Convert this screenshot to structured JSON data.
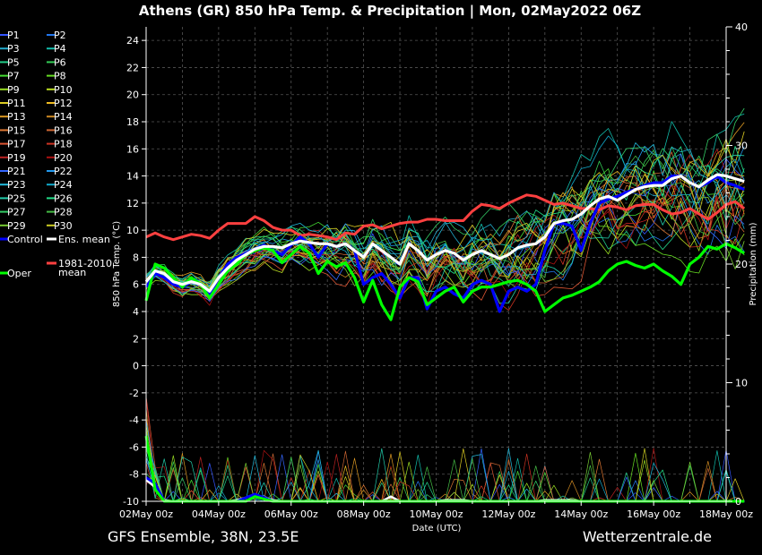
{
  "chart_data": {
    "type": "line",
    "title": "Athens  (GR)  850 hPa Temp. & Precipitation | Mon, 02May2022 06Z",
    "footer_left": "GFS Ensemble, 38N, 23.5E",
    "footer_right": "Wetterzentrale.de",
    "xlabel": "Date (UTC)",
    "ylabel_left": "850 hPa Temp. (°C)",
    "ylabel_right": "Precipitation (mm)",
    "x_range_days": [
      0,
      16
    ],
    "x_step_hours": 6,
    "x_ticks": [
      "02May 00z",
      "04May 00z",
      "06May 00z",
      "08May 00z",
      "10May 00z",
      "12May 00z",
      "14May 00z",
      "16May 00z",
      "18May 00z"
    ],
    "ylim_left": [
      -10,
      25
    ],
    "yticks_left": [
      "-10",
      "-8",
      "-6",
      "-4",
      "-2",
      "0",
      "2",
      "4",
      "6",
      "8",
      "10",
      "12",
      "14",
      "16",
      "18",
      "20",
      "22",
      "24"
    ],
    "ylim_right": [
      0,
      40
    ],
    "yticks_right": [
      "0",
      "10",
      "20",
      "30",
      "40"
    ],
    "grid": true,
    "legend_position": "left",
    "colors": {
      "control": "#0000ff",
      "ens_mean": "#ffffff",
      "oper": "#00ff00",
      "climate_mean": "#ff4040",
      "members": [
        "#3355ff",
        "#2277ee",
        "#22aacc",
        "#11bbaa",
        "#22cc88",
        "#33cc55",
        "#44dd33",
        "#66dd22",
        "#99dd22",
        "#bbdd22",
        "#ddcc22",
        "#eebb22",
        "#dd9922",
        "#cc8822",
        "#dd7733",
        "#cc6633",
        "#dd5533",
        "#cc3322",
        "#bb2222",
        "#aa1111",
        "#3366ff",
        "#2299ee",
        "#22bbdd",
        "#11aacc",
        "#22ccaa",
        "#22dd88",
        "#33cc66",
        "#44bb44",
        "#77cc33",
        "#cccc22"
      ]
    },
    "legend": {
      "members": [
        "P1",
        "P2",
        "P3",
        "P4",
        "P5",
        "P6",
        "P7",
        "P8",
        "P9",
        "P10",
        "P11",
        "P12",
        "P13",
        "P14",
        "P15",
        "P16",
        "P17",
        "P18",
        "P19",
        "P20",
        "P21",
        "P22",
        "P23",
        "P24",
        "P25",
        "P26",
        "P27",
        "P28",
        "P29",
        "P30"
      ],
      "control": "Control",
      "ens_mean": "Ens. mean",
      "oper": "Oper",
      "climate_line1": "1981-2010",
      "climate_line2": "mean"
    },
    "series": [
      {
        "name": "1981-2010 mean",
        "role": "climate",
        "values": [
          9.5,
          9.8,
          9.5,
          9.3,
          9.5,
          9.7,
          9.6,
          9.4,
          10.0,
          10.5,
          10.5,
          10.5,
          11.0,
          10.7,
          10.2,
          10.0,
          10.0,
          9.6,
          9.7,
          9.6,
          9.5,
          9.3,
          9.8,
          9.7,
          10.3,
          10.4,
          10.1,
          10.3,
          10.5,
          10.6,
          10.6,
          10.8,
          10.8,
          10.7,
          10.7,
          10.7,
          11.4,
          11.9,
          11.8,
          11.6,
          12.0,
          12.3,
          12.6,
          12.5,
          12.2,
          11.9,
          12.0,
          11.8,
          11.6,
          11.6,
          11.5,
          11.8,
          11.7,
          11.5,
          11.8,
          11.9,
          11.9,
          11.5,
          11.2,
          11.3,
          11.6,
          11.2,
          10.8,
          11.3,
          11.9,
          12.1,
          11.6
        ]
      },
      {
        "name": "Control",
        "role": "control",
        "values": [
          5.8,
          6.8,
          6.5,
          6.0,
          5.8,
          6.2,
          6.0,
          5.2,
          6.5,
          7.5,
          8.0,
          8.3,
          8.6,
          8.9,
          8.5,
          8.2,
          8.9,
          9.5,
          9.0,
          8.0,
          9.0,
          8.8,
          9.0,
          8.5,
          6.0,
          6.5,
          6.8,
          6.0,
          5.0,
          6.5,
          6.5,
          4.2,
          5.5,
          5.8,
          5.3,
          5.0,
          6.0,
          6.3,
          6.0,
          4.0,
          5.5,
          5.8,
          5.5,
          6.0,
          8.5,
          10.5,
          10.5,
          10.3,
          8.5,
          10.5,
          12.0,
          12.3,
          12.5,
          12.8,
          13.0,
          13.3,
          13.5,
          13.5,
          14.0,
          14.0,
          13.5,
          13.2,
          13.5,
          14.0,
          13.5,
          13.3,
          13.0
        ]
      },
      {
        "name": "Ens. mean",
        "role": "ens_mean",
        "values": [
          6.2,
          7.0,
          6.8,
          6.2,
          6.0,
          6.2,
          6.0,
          5.5,
          6.5,
          7.2,
          7.8,
          8.2,
          8.6,
          8.8,
          8.8,
          8.7,
          9.0,
          9.2,
          9.1,
          9.0,
          9.0,
          8.8,
          9.0,
          8.5,
          8.0,
          9.0,
          8.5,
          8.0,
          7.5,
          9.0,
          8.5,
          7.8,
          8.2,
          8.5,
          8.3,
          7.8,
          8.2,
          8.5,
          8.2,
          7.9,
          8.2,
          8.7,
          8.9,
          9.0,
          9.5,
          10.5,
          10.7,
          10.8,
          11.2,
          11.8,
          12.3,
          12.5,
          12.2,
          12.6,
          13.0,
          13.2,
          13.3,
          13.3,
          13.8,
          14.0,
          13.5,
          13.2,
          13.7,
          14.1,
          14.0,
          13.8,
          13.6
        ]
      },
      {
        "name": "Oper",
        "role": "oper",
        "values": [
          4.8,
          7.5,
          7.2,
          6.5,
          5.8,
          6.5,
          6.0,
          5.0,
          6.0,
          7.0,
          7.5,
          8.2,
          8.5,
          8.7,
          8.5,
          7.6,
          8.2,
          8.8,
          8.3,
          6.8,
          7.7,
          7.3,
          7.6,
          6.5,
          4.7,
          6.3,
          4.5,
          3.4,
          5.8,
          6.5,
          6.2,
          4.5,
          5.0,
          5.5,
          5.8,
          4.7,
          5.5,
          5.8,
          5.8,
          6.0,
          6.2,
          6.3,
          6.0,
          5.5,
          4.0,
          4.5,
          5.0,
          5.2,
          5.5,
          5.8,
          6.2,
          7.0,
          7.5,
          7.7,
          7.4,
          7.2,
          7.5,
          7.0,
          6.6,
          6.0,
          7.5,
          8.0,
          8.8,
          8.6,
          9.0,
          8.7,
          8.3
        ]
      }
    ],
    "precip_series": [
      {
        "name": "Control",
        "role": "control",
        "values": [
          2.0,
          1.5,
          0,
          0,
          0,
          0,
          0,
          0,
          0,
          0,
          0,
          0.3,
          0.6,
          0.3,
          0,
          0,
          0,
          0,
          0,
          0,
          0,
          0,
          0,
          0,
          0,
          0,
          0,
          0,
          0,
          0,
          0,
          0,
          0,
          0,
          0,
          0,
          0,
          0,
          0,
          0,
          0,
          0,
          0,
          0,
          0,
          0,
          0,
          0,
          0,
          0,
          0,
          0,
          0,
          0,
          0,
          0,
          0,
          0,
          0,
          0,
          0,
          0,
          0,
          0,
          0,
          0,
          0
        ]
      },
      {
        "name": "Ens. mean",
        "role": "ens_mean",
        "values": [
          1.8,
          1.2,
          0.1,
          0,
          0,
          0,
          0,
          0,
          0,
          0,
          0.1,
          0.3,
          0.6,
          0.3,
          0.1,
          0,
          0,
          0,
          0,
          0,
          0,
          0,
          0,
          0,
          0,
          0,
          0,
          0.4,
          0,
          0,
          0,
          0,
          0,
          0.1,
          0.1,
          0.1,
          0,
          0,
          0,
          0,
          0,
          0,
          0,
          0,
          0.1,
          0.1,
          0.1,
          0.1,
          0,
          0,
          0,
          0,
          0,
          0,
          0,
          0,
          0,
          0,
          0,
          0,
          0,
          0,
          0,
          0,
          0,
          0,
          0
        ]
      },
      {
        "name": "Oper",
        "role": "oper",
        "values": [
          5.5,
          1.0,
          0,
          0,
          0,
          0,
          0,
          0,
          0,
          0,
          0,
          0,
          0.4,
          0.2,
          0,
          0,
          0,
          0,
          0,
          0,
          0,
          0,
          0,
          0,
          0,
          0,
          0,
          0,
          0,
          0,
          0,
          0,
          0,
          0,
          0,
          0,
          0,
          0,
          0,
          0,
          0,
          0,
          0,
          0,
          0,
          0,
          0,
          0,
          0,
          0,
          0,
          0,
          0,
          0,
          0,
          0,
          0,
          0,
          0,
          0,
          0,
          0,
          0,
          0,
          0,
          0,
          0
        ]
      }
    ]
  }
}
